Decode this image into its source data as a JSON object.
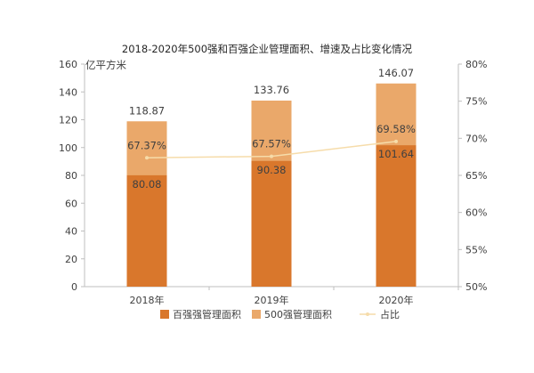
{
  "chart_data": {
    "type": "bar",
    "title": "2018-2020年500强和百强企业管理面积、增速及占比变化情况",
    "ylabel": "亿平方米",
    "categories": [
      "2018年",
      "2019年",
      "2020年"
    ],
    "ylim": [
      0,
      160
    ],
    "yticks": [
      "0",
      "20",
      "40",
      "60",
      "80",
      "100",
      "120",
      "140",
      "160"
    ],
    "y2lim": [
      0.5,
      0.8
    ],
    "y2ticks": [
      "50%",
      "55%",
      "60%",
      "65%",
      "70%",
      "75%",
      "80%"
    ],
    "series": [
      {
        "name": "百强强管理面积",
        "kind": "bar",
        "values": [
          80.08,
          90.38,
          101.64
        ],
        "labels": [
          "80.08",
          "90.38",
          "101.64"
        ],
        "color": "#d9772c"
      },
      {
        "name": "500强管理面积",
        "kind": "bar",
        "values": [
          118.87,
          133.76,
          146.07
        ],
        "labels": [
          "118.87",
          "133.76",
          "146.07"
        ],
        "color": "#eaa86a"
      },
      {
        "name": "占比",
        "kind": "line",
        "axis": "right",
        "values": [
          0.6737,
          0.6757,
          0.6958
        ],
        "labels": [
          "67.37%",
          "67.57%",
          "69.58%"
        ],
        "color": "#f6dcaa"
      }
    ],
    "legend": "bottom",
    "grid": false
  }
}
